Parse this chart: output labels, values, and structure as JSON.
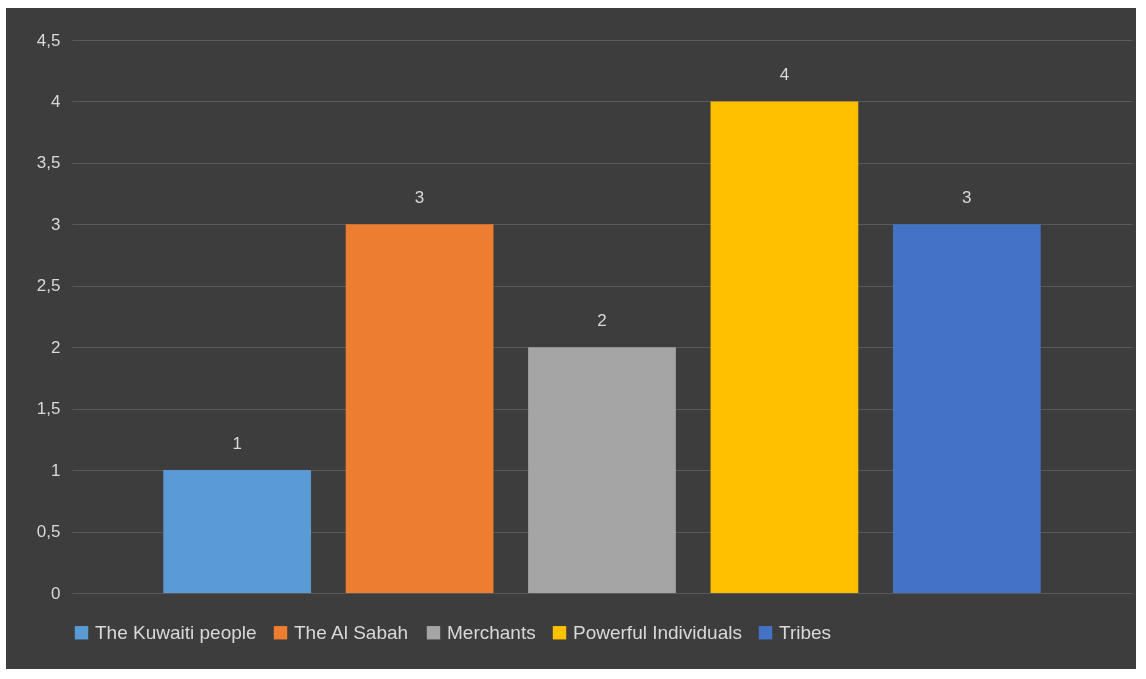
{
  "chart_data": {
    "type": "bar",
    "categories": [
      null
    ],
    "series": [
      {
        "name": "The Kuwaiti people",
        "color": "#5b9bd5",
        "values": [
          1
        ]
      },
      {
        "name": "The Al Sabah",
        "color": "#ed7d31",
        "values": [
          3
        ]
      },
      {
        "name": "Merchants",
        "color": "#a5a5a5",
        "values": [
          2
        ]
      },
      {
        "name": "Powerful Individuals",
        "color": "#ffc000",
        "values": [
          4
        ]
      },
      {
        "name": "Tribes",
        "color": "#4472c4",
        "values": [
          3
        ]
      }
    ],
    "ylim": [
      0,
      4.5
    ],
    "yticks": [
      0,
      {
        "value": 0.5,
        "label": "0,5"
      },
      1,
      {
        "value": 1.5,
        "label": "1,5"
      },
      2,
      {
        "value": 2.5,
        "label": "2,5"
      },
      3,
      {
        "value": 3.5,
        "label": "3,5"
      },
      4,
      {
        "value": 4.5,
        "label": "4,5"
      }
    ],
    "grid": "y",
    "legend": "bottom",
    "data_labels": true
  }
}
